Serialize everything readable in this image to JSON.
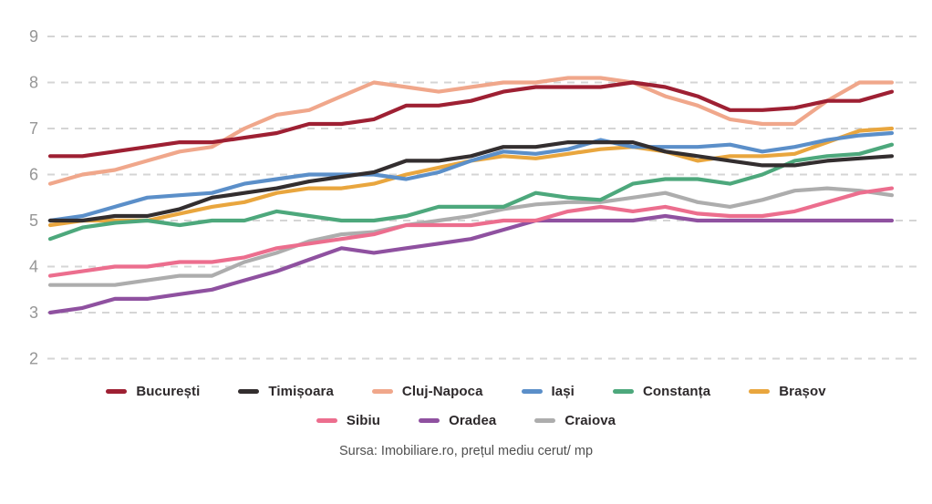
{
  "source": "Sursa: Imobiliare.ro, prețul mediu cerut/ mp",
  "y_axis": {
    "tick_labels": [
      "9",
      "8",
      "7",
      "6",
      "5",
      "4",
      "3",
      "2"
    ],
    "tick_values": [
      9,
      8,
      7,
      6,
      5,
      4,
      3,
      2
    ],
    "color": "#969696"
  },
  "grid": {
    "color": "#d5d5d5",
    "dash": "8 7"
  },
  "chart_data": {
    "type": "line",
    "title": "",
    "xlabel": "",
    "ylabel": "",
    "ylim": [
      2,
      9
    ],
    "x_tick_labels_visible": false,
    "point_count": 27,
    "grid": "horizontal-dashed",
    "legend_position": "bottom",
    "unit": "EUR / mp (prețul mediu cerut)",
    "series": [
      {
        "name": "București",
        "color": "#9e2033",
        "values": [
          6.4,
          6.4,
          6.5,
          6.6,
          6.7,
          6.7,
          6.8,
          6.9,
          7.1,
          7.1,
          7.2,
          7.5,
          7.5,
          7.6,
          7.8,
          7.9,
          7.9,
          7.9,
          8.0,
          7.9,
          7.7,
          7.4,
          7.4,
          7.45,
          7.6,
          7.6,
          7.8
        ]
      },
      {
        "name": "Timișoara",
        "color": "#332e2f",
        "values": [
          5.0,
          5.0,
          5.1,
          5.1,
          5.25,
          5.5,
          5.6,
          5.7,
          5.85,
          5.95,
          6.05,
          6.3,
          6.3,
          6.4,
          6.6,
          6.6,
          6.7,
          6.7,
          6.7,
          6.5,
          6.4,
          6.3,
          6.2,
          6.2,
          6.3,
          6.35,
          6.4
        ]
      },
      {
        "name": "Cluj-Napoca",
        "color": "#f0a78b",
        "values": [
          5.8,
          6.0,
          6.1,
          6.3,
          6.5,
          6.6,
          7.0,
          7.3,
          7.4,
          7.7,
          8.0,
          7.9,
          7.8,
          7.9,
          8.0,
          8.0,
          8.1,
          8.1,
          8.0,
          7.7,
          7.5,
          7.2,
          7.1,
          7.1,
          7.6,
          8.0,
          8.0
        ]
      },
      {
        "name": "Iași",
        "color": "#5b8fc9",
        "values": [
          5.0,
          5.1,
          5.3,
          5.5,
          5.55,
          5.6,
          5.8,
          5.9,
          6.0,
          6.0,
          6.0,
          5.9,
          6.05,
          6.3,
          6.5,
          6.45,
          6.55,
          6.75,
          6.6,
          6.6,
          6.6,
          6.65,
          6.5,
          6.6,
          6.75,
          6.85,
          6.9
        ]
      },
      {
        "name": "Constanța",
        "color": "#4da87c",
        "values": [
          4.6,
          4.85,
          4.95,
          5.0,
          4.9,
          5.0,
          5.0,
          5.2,
          5.1,
          5.0,
          5.0,
          5.1,
          5.3,
          5.3,
          5.3,
          5.6,
          5.5,
          5.45,
          5.8,
          5.9,
          5.9,
          5.8,
          6.0,
          6.3,
          6.4,
          6.45,
          6.65
        ]
      },
      {
        "name": "Brașov",
        "color": "#e9a63e",
        "values": [
          4.9,
          5.0,
          5.0,
          5.0,
          5.15,
          5.3,
          5.4,
          5.6,
          5.7,
          5.7,
          5.8,
          6.0,
          6.15,
          6.3,
          6.4,
          6.35,
          6.45,
          6.55,
          6.6,
          6.5,
          6.3,
          6.4,
          6.4,
          6.45,
          6.7,
          6.95,
          7.0
        ]
      },
      {
        "name": "Sibiu",
        "color": "#ec6e8e",
        "values": [
          3.8,
          3.9,
          4.0,
          4.0,
          4.1,
          4.1,
          4.2,
          4.4,
          4.5,
          4.6,
          4.7,
          4.9,
          4.9,
          4.9,
          5.0,
          5.0,
          5.2,
          5.3,
          5.2,
          5.3,
          5.15,
          5.1,
          5.1,
          5.2,
          5.4,
          5.6,
          5.7
        ]
      },
      {
        "name": "Oradea",
        "color": "#8f51a0",
        "values": [
          3.0,
          3.1,
          3.3,
          3.3,
          3.4,
          3.5,
          3.7,
          3.9,
          4.15,
          4.4,
          4.3,
          4.4,
          4.5,
          4.6,
          4.8,
          5.0,
          5.0,
          5.0,
          5.0,
          5.1,
          5.0,
          5.0,
          5.0,
          5.0,
          5.0,
          5.0,
          5.0
        ]
      },
      {
        "name": "Craiova",
        "color": "#adadad",
        "values": [
          3.6,
          3.6,
          3.6,
          3.7,
          3.8,
          3.8,
          4.1,
          4.3,
          4.55,
          4.7,
          4.75,
          4.9,
          5.0,
          5.1,
          5.25,
          5.35,
          5.4,
          5.4,
          5.5,
          5.6,
          5.4,
          5.3,
          5.45,
          5.65,
          5.7,
          5.65,
          5.55
        ]
      }
    ],
    "legend_rows": [
      [
        0,
        1,
        2,
        3,
        4,
        5
      ],
      [
        6,
        7,
        8
      ]
    ]
  }
}
